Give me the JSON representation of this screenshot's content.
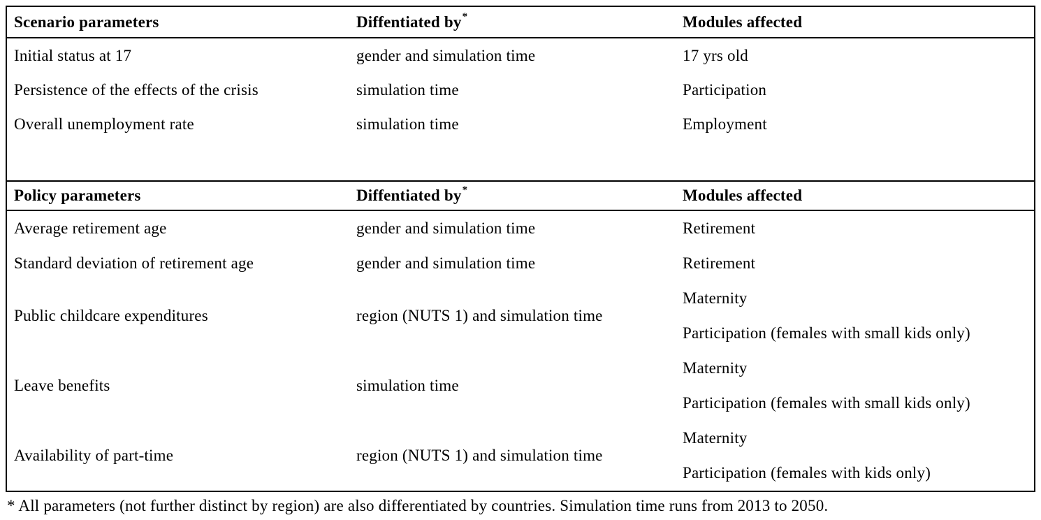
{
  "table": {
    "sections": [
      {
        "name": "scenario-parameters-section",
        "header": {
          "parameters": "Scenario parameters",
          "differentiated_by": "Diffentiated by",
          "differentiated_by_sup": "*",
          "modules_affected": "Modules affected"
        },
        "rows": [
          {
            "parameter": "Initial status at 17",
            "differentiated_by": "gender and simulation time",
            "modules": [
              "17 yrs old"
            ]
          },
          {
            "parameter": "Persistence of the effects of the crisis",
            "differentiated_by": "simulation time",
            "modules": [
              "Participation"
            ]
          },
          {
            "parameter": "Overall unemployment rate",
            "differentiated_by": "simulation time",
            "modules": [
              "Employment"
            ]
          }
        ]
      },
      {
        "name": "policy-parameters-section",
        "header": {
          "parameters": "Policy parameters",
          "differentiated_by": "Diffentiated by",
          "differentiated_by_sup": "*",
          "modules_affected": "Modules affected"
        },
        "rows": [
          {
            "parameter": "Average retirement age",
            "differentiated_by": "gender and simulation time",
            "modules": [
              "Retirement"
            ]
          },
          {
            "parameter": "Standard deviation of retirement age",
            "differentiated_by": "gender and simulation time",
            "modules": [
              "Retirement"
            ]
          },
          {
            "parameter": "Public childcare expenditures",
            "differentiated_by": "region (NUTS 1) and simulation time",
            "modules": [
              "Maternity",
              "Participation (females with small kids only)"
            ]
          },
          {
            "parameter": "Leave benefits",
            "differentiated_by": "simulation time",
            "modules": [
              "Maternity",
              "Participation (females with small kids only)"
            ]
          },
          {
            "parameter": "Availability of part-time",
            "differentiated_by": "region (NUTS 1) and simulation time",
            "modules": [
              "Maternity",
              "Participation (females with kids only)"
            ]
          }
        ]
      }
    ],
    "footnote": "* All parameters (not further distinct by region) are also differentiated by countries. Simulation time runs from 2013 to 2050."
  }
}
